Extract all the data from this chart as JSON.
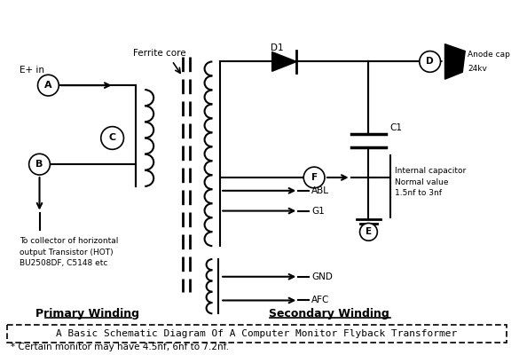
{
  "title": "A Basic Schematic Diagram Of A Computer Monitor Flyback Transformer",
  "footnote": "* Certain monitor may have 4.5nf, 6nf to 7.2nf.",
  "primary_label": "Primary Winding",
  "secondary_label": "Secondary Winding",
  "ferrite_core_label": "Ferrite core",
  "e_plus_in_label": "E+ in",
  "label_A": "A",
  "label_B": "B",
  "label_C": "C",
  "label_D": "D",
  "label_E": "E",
  "label_F": "F",
  "label_D1": "D1",
  "label_C1": "C1",
  "anode_cap_line1": "Anode cap",
  "anode_cap_line2": "24kv",
  "collector_label": "To collector of horizontal\noutput Transistor (HOT)\nBU2508DF, C5148 etc",
  "internal_cap_label": "Internal capacitor\nNormal value\n1.5nf to 3nf",
  "outputs": [
    "ABL",
    "G1",
    "GND",
    "AFC"
  ],
  "bg_color": "#ffffff",
  "line_color": "#000000"
}
